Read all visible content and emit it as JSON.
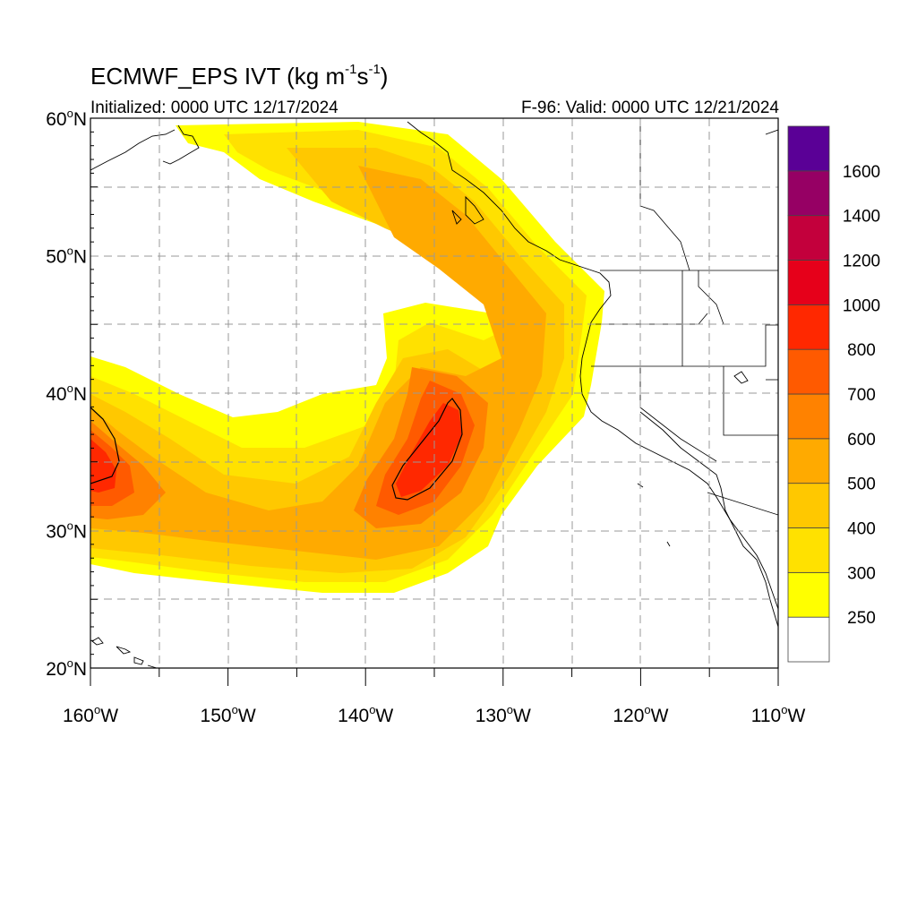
{
  "header": {
    "title_main": "ECMWF_EPS IVT (kg m",
    "title_sup1": "-1",
    "title_mid": "s",
    "title_sup2": "-1",
    "title_end": ")",
    "initialized": "Initialized: 0000 UTC 12/17/2024",
    "valid": "F-96: Valid: 0000 UTC 12/21/2024"
  },
  "axes": {
    "lon_range": [
      -160,
      -110
    ],
    "lat_range": [
      20,
      60
    ],
    "lon_ticks": [
      {
        "value": -160,
        "label": "160",
        "hemi": "W"
      },
      {
        "value": -150,
        "label": "150",
        "hemi": "W"
      },
      {
        "value": -140,
        "label": "140",
        "hemi": "W"
      },
      {
        "value": -130,
        "label": "130",
        "hemi": "W"
      },
      {
        "value": -120,
        "label": "120",
        "hemi": "W"
      },
      {
        "value": -110,
        "label": "110",
        "hemi": "W"
      }
    ],
    "lat_ticks": [
      {
        "value": 20,
        "label": "20",
        "hemi": "N"
      },
      {
        "value": 30,
        "label": "30",
        "hemi": "N"
      },
      {
        "value": 40,
        "label": "40",
        "hemi": "N"
      },
      {
        "value": 50,
        "label": "50",
        "hemi": "N"
      },
      {
        "value": 60,
        "label": "60",
        "hemi": "N"
      }
    ],
    "grid": "dashed, every 5 degrees"
  },
  "legend": {
    "placement": "right",
    "levels": [
      {
        "color": "#ffffff"
      },
      {
        "color": "#ffff00",
        "label": "250"
      },
      {
        "color": "#ffe100",
        "label": "300"
      },
      {
        "color": "#ffc800",
        "label": "400"
      },
      {
        "color": "#ffaa00",
        "label": "500"
      },
      {
        "color": "#ff8200",
        "label": "600"
      },
      {
        "color": "#ff5a00",
        "label": "700"
      },
      {
        "color": "#ff2800",
        "label": "800"
      },
      {
        "color": "#e6001a",
        "label": "1000"
      },
      {
        "color": "#c3003c",
        "label": "1200"
      },
      {
        "color": "#960064",
        "label": "1400"
      },
      {
        "color": "#5a0096",
        "label": "1600"
      }
    ]
  }
}
